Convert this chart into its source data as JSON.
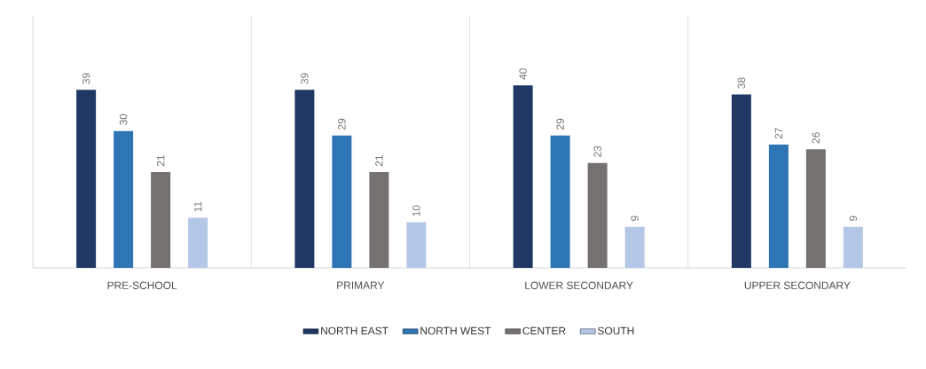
{
  "chart_data": {
    "type": "bar",
    "categories": [
      "PRE-SCHOOL",
      "PRIMARY",
      "LOWER SECONDARY",
      "UPPER SECONDARY"
    ],
    "series": [
      {
        "name": "NORTH EAST",
        "color": "#1f3864",
        "values": [
          39,
          39,
          40,
          38
        ]
      },
      {
        "name": "NORTH WEST",
        "color": "#2e75b6",
        "values": [
          30,
          29,
          29,
          27
        ]
      },
      {
        "name": "CENTER",
        "color": "#767171",
        "values": [
          21,
          21,
          23,
          26
        ]
      },
      {
        "name": "SOUTH",
        "color": "#b4c7e7",
        "values": [
          11,
          10,
          9,
          9
        ]
      }
    ],
    "data_labels": true,
    "grid": "x",
    "legend": "bottom"
  }
}
